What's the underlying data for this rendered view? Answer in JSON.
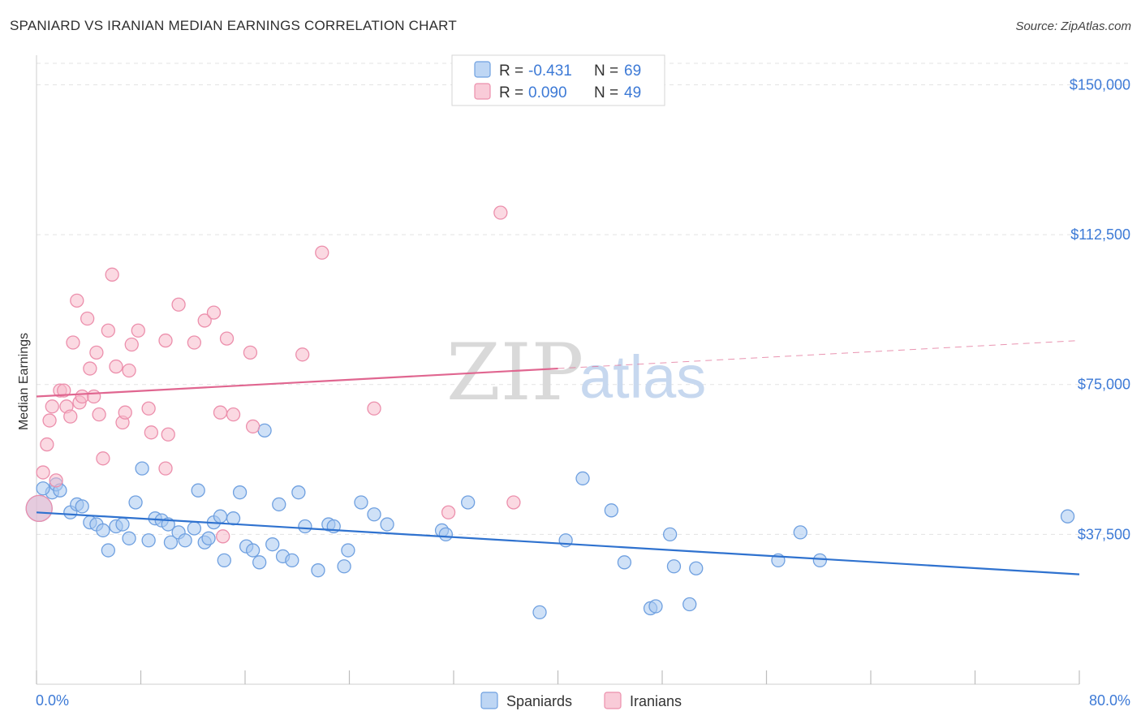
{
  "title": "SPANIARD VS IRANIAN MEDIAN EARNINGS CORRELATION CHART",
  "source": "Source: ZipAtlas.com",
  "watermark": {
    "zip": "ZIP",
    "atlas": "atlas"
  },
  "legend": {
    "rows": [
      {
        "r_label": "R =",
        "r_value": "-0.431",
        "n_label": "N =",
        "n_value": "69"
      },
      {
        "r_label": "R =",
        "r_value": "0.090",
        "n_label": "N =",
        "n_value": "49"
      }
    ]
  },
  "bottom_legend": [
    "Spaniards",
    "Iranians"
  ],
  "colors": {
    "spaniards_fill": "#a8c8f0",
    "spaniards_stroke": "#6fa0e0",
    "spaniards_line": "#2f72cf",
    "iranians_fill": "#f7b9cb",
    "iranians_stroke": "#ec8fac",
    "iranians_line": "#e06690",
    "tick_text": "#3d7ad6"
  },
  "chart_data": {
    "type": "scatter",
    "title": "SPANIARD VS IRANIAN MEDIAN EARNINGS CORRELATION CHART",
    "xlabel": "",
    "ylabel": "Median Earnings",
    "xlim": [
      0,
      80
    ],
    "ylim": [
      0,
      157000
    ],
    "x_tick_labels": [
      "0.0%",
      "80.0%"
    ],
    "y_ticks": [
      37500,
      75000,
      112500,
      150000
    ],
    "y_tick_labels": [
      "$37,500",
      "$75,000",
      "$112,500",
      "$150,000"
    ],
    "grid": true,
    "legend_position": "top-center",
    "series": [
      {
        "name": "Spaniards",
        "r": -0.431,
        "n": 69,
        "trend": {
          "x": [
            0,
            80
          ],
          "y": [
            43000,
            27500
          ],
          "dashed_from": null
        },
        "points": [
          [
            0.2,
            44000
          ],
          [
            1.2,
            48000
          ],
          [
            1.5,
            50000
          ],
          [
            1.8,
            48500
          ],
          [
            2.6,
            43000
          ],
          [
            3.1,
            45000
          ],
          [
            3.5,
            44500
          ],
          [
            4.1,
            40500
          ],
          [
            4.6,
            40000
          ],
          [
            5.1,
            38500
          ],
          [
            5.5,
            33500
          ],
          [
            6.1,
            39500
          ],
          [
            6.6,
            40000
          ],
          [
            7.1,
            36500
          ],
          [
            7.6,
            45500
          ],
          [
            8.1,
            54000
          ],
          [
            8.6,
            36000
          ],
          [
            9.1,
            41500
          ],
          [
            9.6,
            41000
          ],
          [
            10.1,
            40000
          ],
          [
            10.3,
            35500
          ],
          [
            10.9,
            38000
          ],
          [
            11.4,
            36000
          ],
          [
            12.1,
            39000
          ],
          [
            12.4,
            48500
          ],
          [
            12.9,
            35500
          ],
          [
            13.2,
            36500
          ],
          [
            13.6,
            40500
          ],
          [
            14.1,
            42000
          ],
          [
            14.4,
            31000
          ],
          [
            15.1,
            41500
          ],
          [
            15.6,
            48000
          ],
          [
            16.1,
            34500
          ],
          [
            16.6,
            33500
          ],
          [
            17.1,
            30500
          ],
          [
            17.5,
            63500
          ],
          [
            18.1,
            35000
          ],
          [
            18.6,
            45000
          ],
          [
            18.9,
            32000
          ],
          [
            19.6,
            31000
          ],
          [
            20.1,
            48000
          ],
          [
            20.6,
            39500
          ],
          [
            21.6,
            28500
          ],
          [
            22.4,
            40000
          ],
          [
            22.8,
            39500
          ],
          [
            23.6,
            29500
          ],
          [
            23.9,
            33500
          ],
          [
            24.9,
            45500
          ],
          [
            25.9,
            42500
          ],
          [
            26.9,
            40000
          ],
          [
            31.1,
            38500
          ],
          [
            31.4,
            37500
          ],
          [
            33.1,
            45500
          ],
          [
            38.6,
            18000
          ],
          [
            40.6,
            36000
          ],
          [
            41.9,
            51500
          ],
          [
            44.1,
            43500
          ],
          [
            45.1,
            30500
          ],
          [
            47.1,
            19000
          ],
          [
            47.5,
            19500
          ],
          [
            48.6,
            37500
          ],
          [
            48.9,
            29500
          ],
          [
            50.1,
            20000
          ],
          [
            50.6,
            29000
          ],
          [
            56.9,
            31000
          ],
          [
            58.6,
            38000
          ],
          [
            60.1,
            31000
          ],
          [
            79.1,
            42000
          ],
          [
            0.5,
            49000
          ]
        ]
      },
      {
        "name": "Iranians",
        "r": 0.09,
        "n": 49,
        "trend": {
          "x": [
            0,
            80
          ],
          "y": [
            72000,
            86000
          ],
          "dashed_from": 40
        },
        "points": [
          [
            0.2,
            44000
          ],
          [
            0.5,
            53000
          ],
          [
            0.8,
            60000
          ],
          [
            1.0,
            66000
          ],
          [
            1.2,
            69500
          ],
          [
            1.5,
            51000
          ],
          [
            1.8,
            73500
          ],
          [
            2.1,
            73500
          ],
          [
            2.3,
            69500
          ],
          [
            2.6,
            67000
          ],
          [
            2.8,
            85500
          ],
          [
            3.1,
            96000
          ],
          [
            3.3,
            70500
          ],
          [
            3.5,
            72000
          ],
          [
            3.9,
            91500
          ],
          [
            4.1,
            79000
          ],
          [
            4.4,
            72000
          ],
          [
            4.6,
            83000
          ],
          [
            4.8,
            67500
          ],
          [
            5.1,
            56500
          ],
          [
            5.5,
            88500
          ],
          [
            5.8,
            102500
          ],
          [
            6.1,
            79500
          ],
          [
            6.6,
            65500
          ],
          [
            6.8,
            68000
          ],
          [
            7.1,
            78500
          ],
          [
            7.3,
            85000
          ],
          [
            7.8,
            88500
          ],
          [
            8.6,
            69000
          ],
          [
            8.8,
            63000
          ],
          [
            9.9,
            86000
          ],
          [
            10.1,
            62500
          ],
          [
            9.9,
            54000
          ],
          [
            10.9,
            95000
          ],
          [
            12.1,
            85500
          ],
          [
            12.9,
            91000
          ],
          [
            13.6,
            93000
          ],
          [
            14.1,
            68000
          ],
          [
            14.3,
            37000
          ],
          [
            14.6,
            86500
          ],
          [
            15.1,
            67500
          ],
          [
            16.4,
            83000
          ],
          [
            16.6,
            64500
          ],
          [
            20.4,
            82500
          ],
          [
            21.9,
            108000
          ],
          [
            25.9,
            69000
          ],
          [
            31.6,
            43000
          ],
          [
            35.6,
            118000
          ],
          [
            36.6,
            45500
          ]
        ]
      }
    ]
  }
}
